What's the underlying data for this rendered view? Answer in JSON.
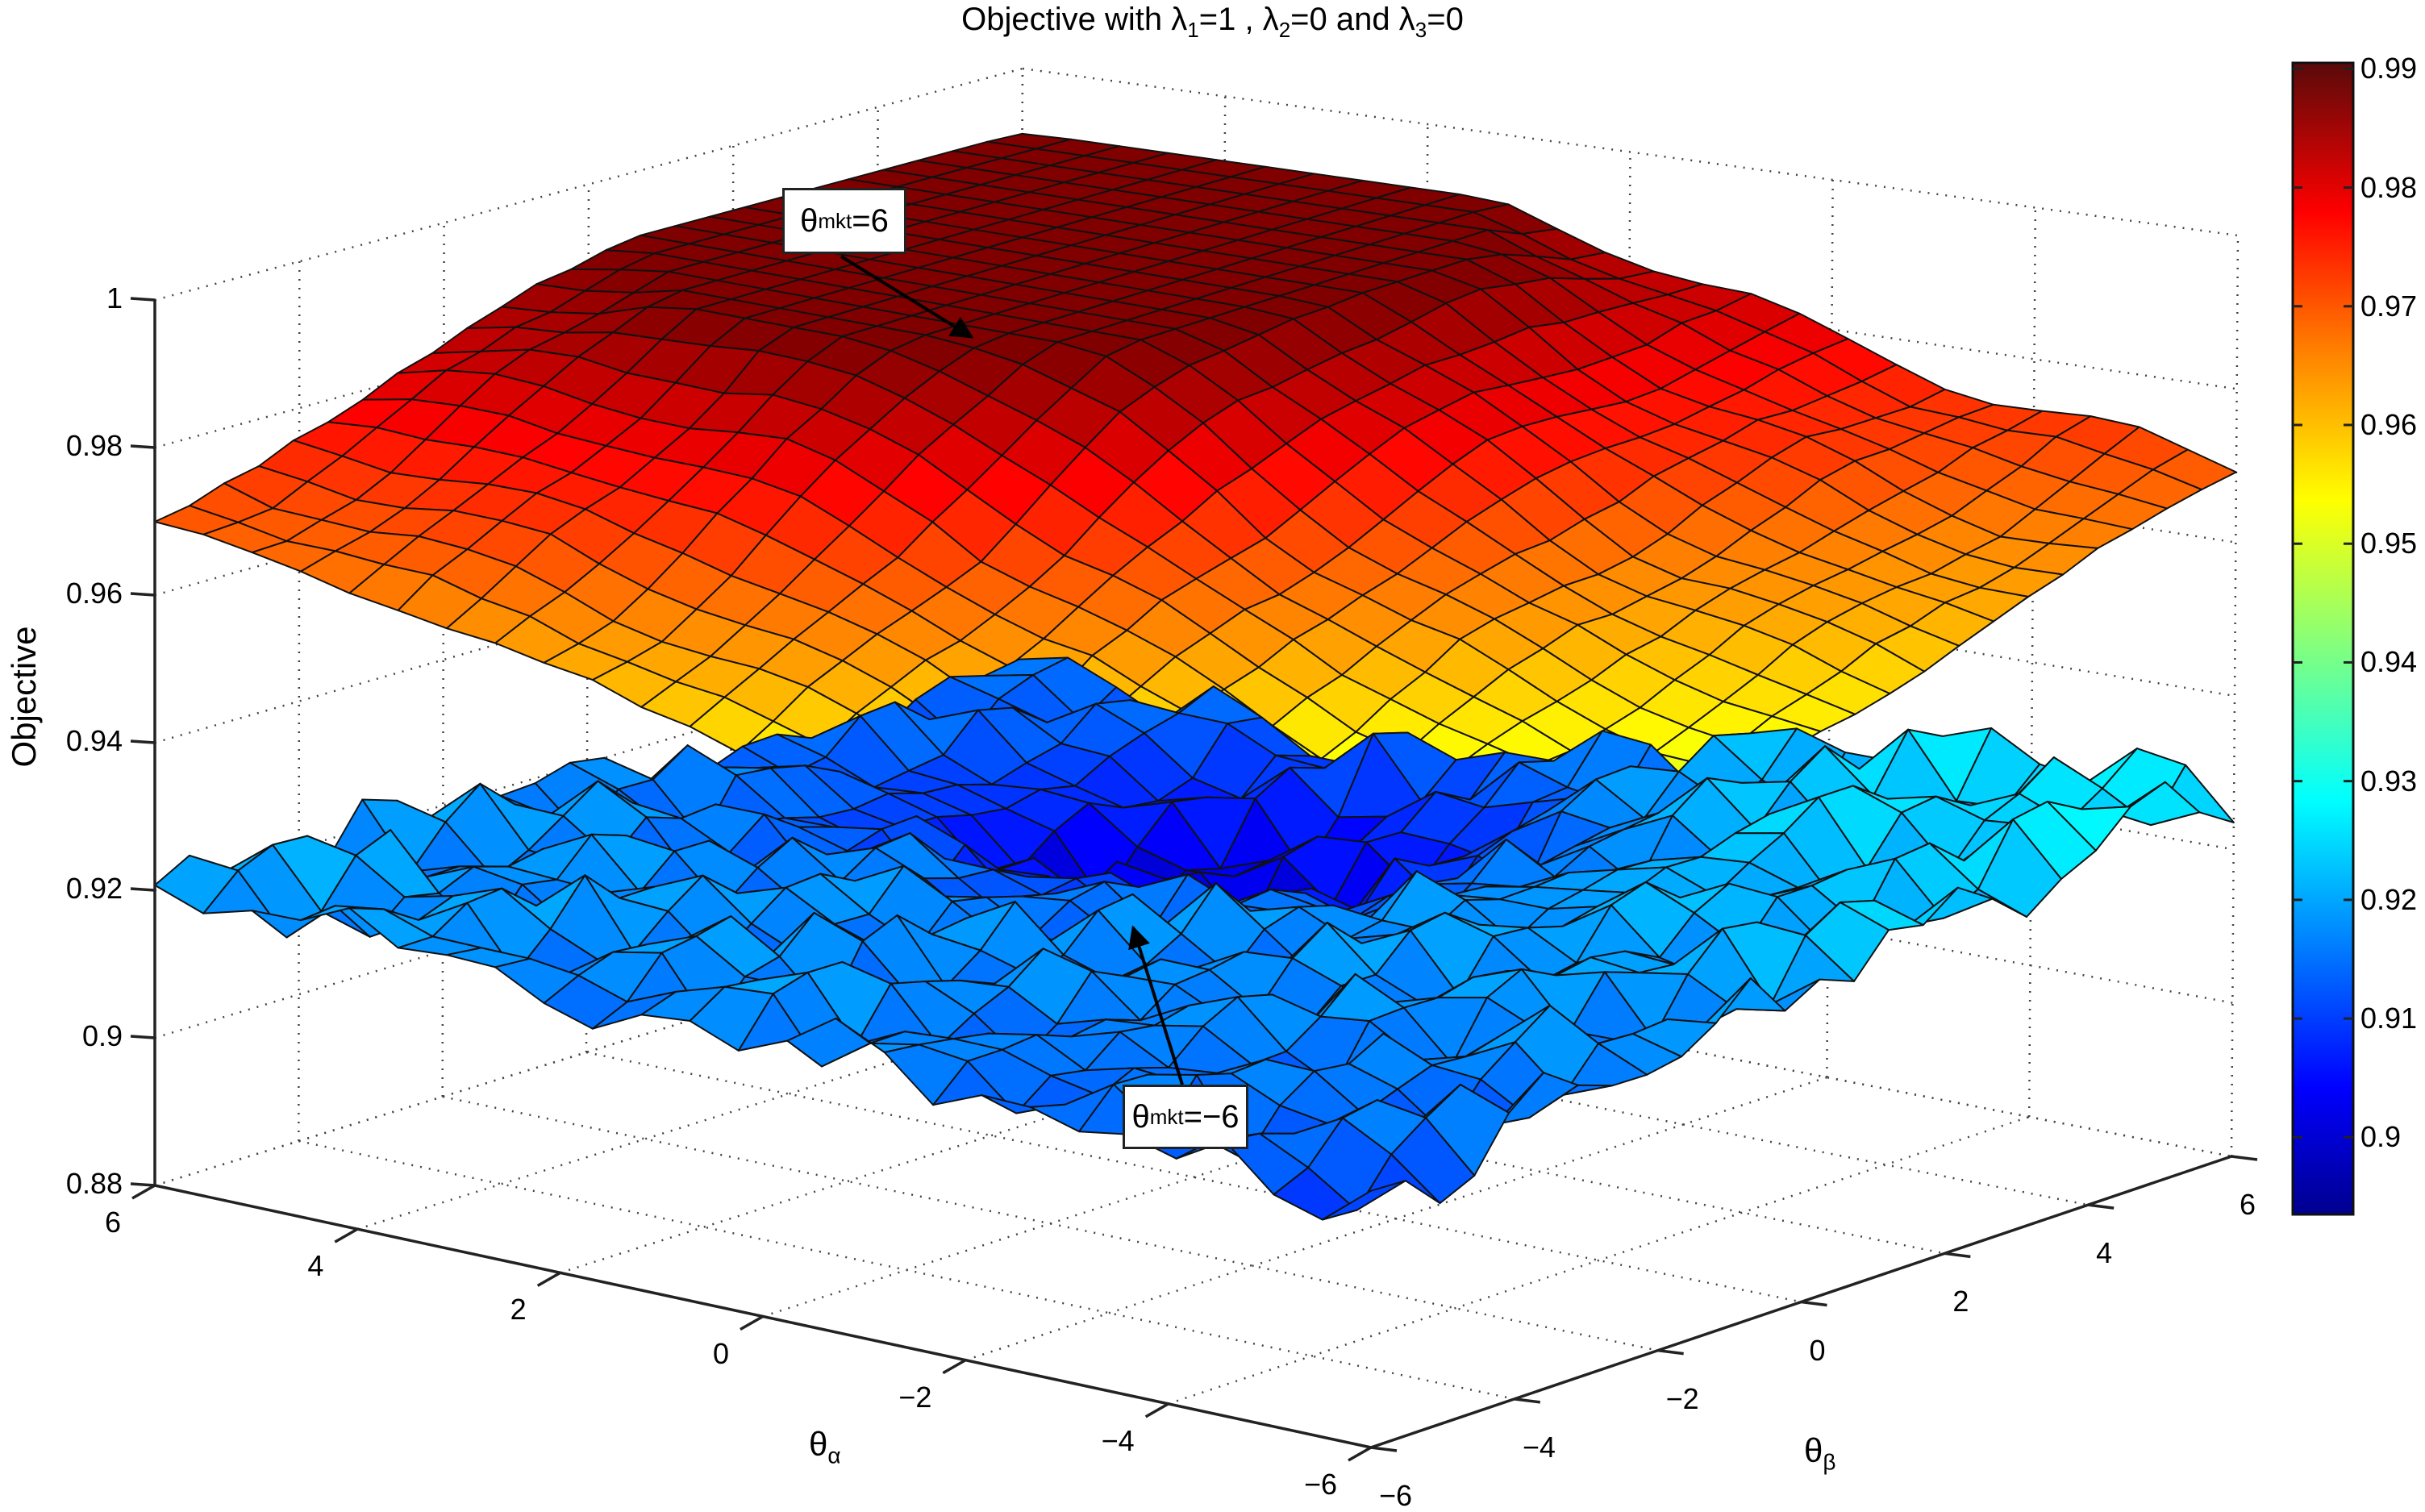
{
  "chart_data": {
    "type": "surface3d",
    "title": "Objective with λ1=1 , λ2=0 and λ3=0",
    "title_parts": {
      "prefix": "Objective with ",
      "l1": "λ",
      "l1_sub": "1",
      "l1_val": "=1 , ",
      "l2": "λ",
      "l2_sub": "2",
      "l2_val": "=0 and ",
      "l3": "λ",
      "l3_sub": "3",
      "l3_val": "=0"
    },
    "xlabel": "θα",
    "xlabel_parts": {
      "base": "θ",
      "sub": "α"
    },
    "ylabel_3d": "θβ",
    "ylabel_3d_parts": {
      "base": "θ",
      "sub": "β"
    },
    "zlabel": "Objective",
    "x_axis": {
      "name": "theta_alpha",
      "range": [
        -6,
        6
      ],
      "ticks": [
        6,
        4,
        2,
        0,
        -2,
        -4,
        -6
      ],
      "tick_labels": [
        "6",
        "4",
        "2",
        "0",
        "−2",
        "−4",
        "−6"
      ]
    },
    "y_axis": {
      "name": "theta_beta",
      "range": [
        -6,
        6
      ],
      "ticks": [
        -6,
        -4,
        -2,
        0,
        2,
        4,
        6
      ],
      "tick_labels": [
        "−6",
        "−4",
        "−2",
        "0",
        "2",
        "4",
        "6"
      ]
    },
    "z_axis": {
      "range": [
        0.88,
        1.0
      ],
      "ticks": [
        1.0,
        0.98,
        0.96,
        0.94,
        0.92,
        0.9,
        0.88
      ],
      "tick_labels": [
        "1",
        "0.98",
        "0.96",
        "0.94",
        "0.92",
        "0.9",
        "0.88"
      ]
    },
    "grid": true,
    "colormap": "jet",
    "colorbar": {
      "range": [
        0.8935,
        0.9905
      ],
      "ticks": [
        0.99,
        0.98,
        0.97,
        0.96,
        0.95,
        0.94,
        0.93,
        0.92,
        0.91,
        0.9
      ],
      "tick_labels": [
        "0.99",
        "0.98",
        "0.97",
        "0.96",
        "0.95",
        "0.94",
        "0.93",
        "0.92",
        "0.91",
        "0.9"
      ]
    },
    "series": [
      {
        "name": "θmkt=6",
        "description": "upper dome-shaped surface",
        "grid_n": 25,
        "corner_values": {
          "alpha6_beta-6": 0.968,
          "alpha-6_beta-6": 0.947,
          "alpha-6_beta6": 0.97,
          "alpha6_beta6": 0.985
        },
        "peak_value": 0.99,
        "min_value": 0.945
      },
      {
        "name": "θmkt=−6",
        "description": "lower noisy flat surface",
        "grid_n": 25,
        "corner_values": {
          "alpha6_beta-6": 0.921,
          "alpha-6_beta-6": 0.914,
          "alpha-6_beta6": 0.929,
          "alpha6_beta6": 0.915
        },
        "range": [
          0.895,
          0.934
        ]
      }
    ],
    "annotations": [
      {
        "text": "θmkt=6",
        "base": "θ",
        "sub": "mkt",
        "value": "=6",
        "target": "upper surface"
      },
      {
        "text": "θmkt=−6",
        "base": "θ",
        "sub": "mkt",
        "value": "=−6",
        "target": "lower surface"
      }
    ]
  },
  "colors": {
    "grid": "#444444",
    "axis": "#222222",
    "mesh_edge": "#111111",
    "jet_stops": [
      "#00008f",
      "#0000ff",
      "#0080ff",
      "#00ffff",
      "#80ff80",
      "#ffff00",
      "#ff8000",
      "#ff0000",
      "#800000"
    ]
  }
}
